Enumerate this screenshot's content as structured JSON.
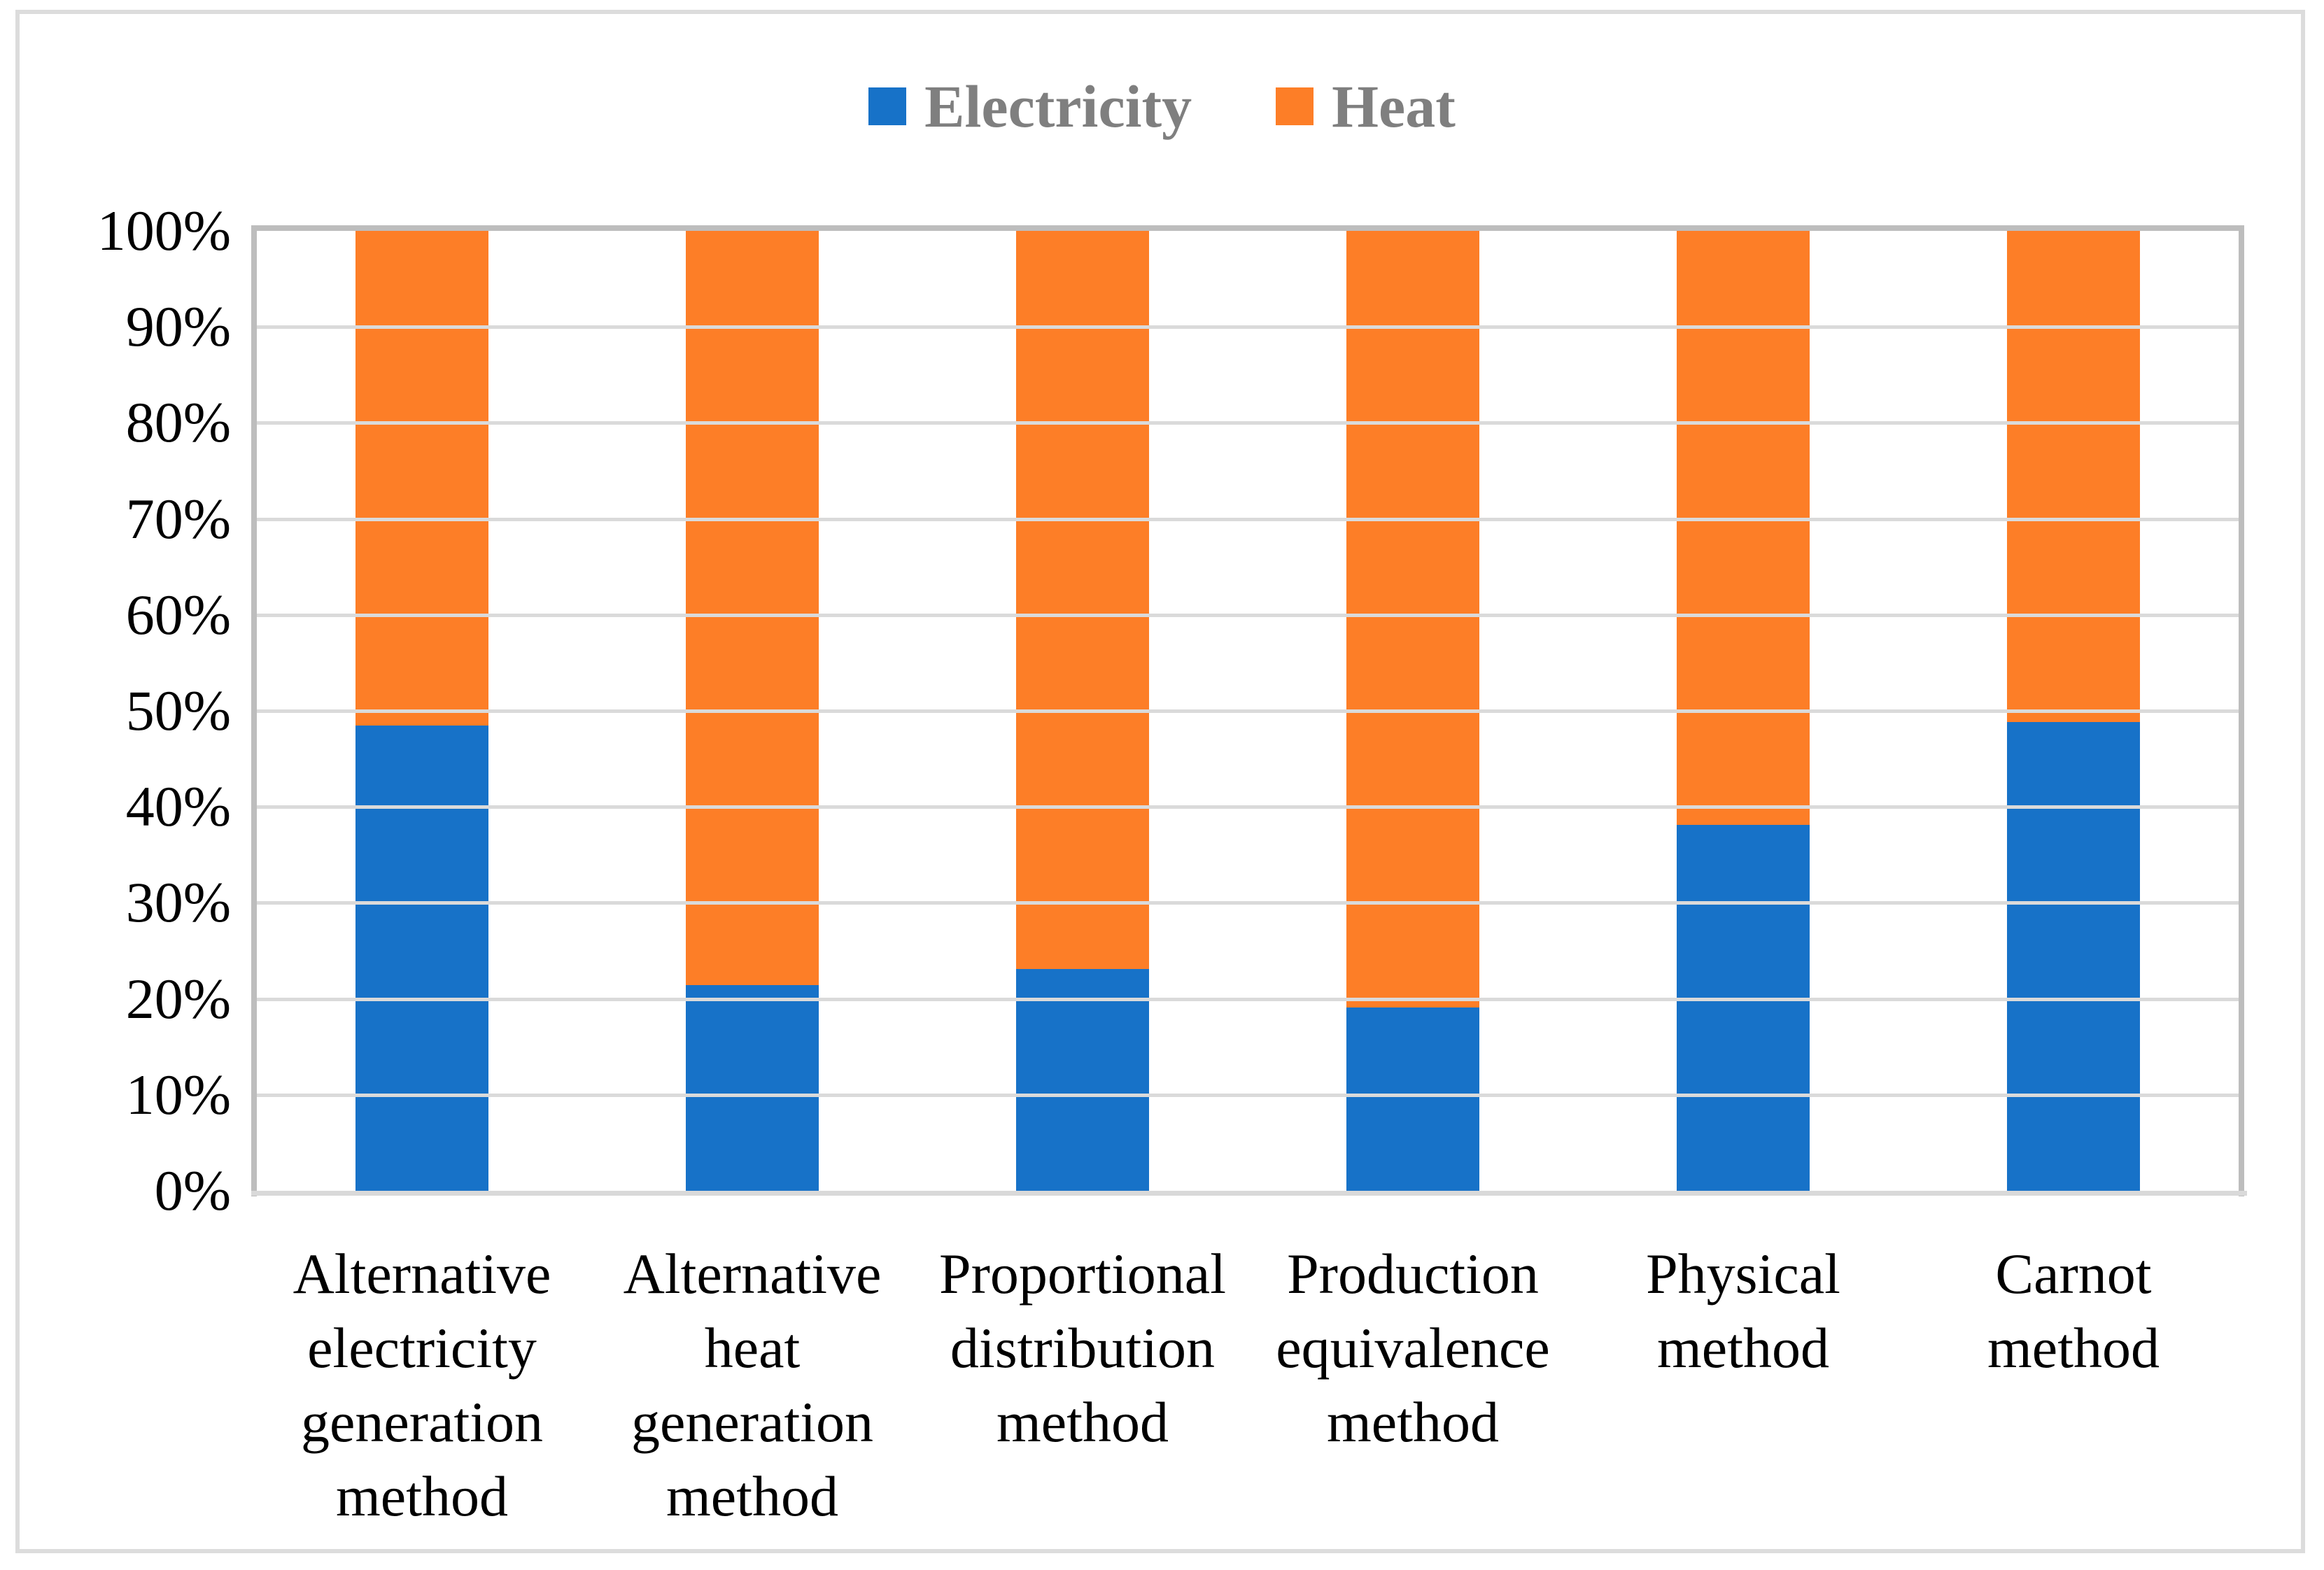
{
  "chart_data": {
    "type": "bar",
    "subtype": "stacked-100-percent",
    "title": "",
    "xlabel": "",
    "ylabel": "",
    "categories": [
      "Alternative\nelectricity\ngeneration\nmethod",
      "Alternative\nheat\ngeneration\nmethod",
      "Proportional\ndistribution\nmethod",
      "Production\nequivalence\nmethod",
      "Physical\nmethod",
      "Carnot\nmethod"
    ],
    "series": [
      {
        "name": "Electricity",
        "color": "#1772c8",
        "values": [
          48.5,
          21.4,
          23.1,
          19.1,
          38.1,
          48.8
        ]
      },
      {
        "name": "Heat",
        "color": "#fd7e27",
        "values": [
          51.5,
          78.6,
          76.9,
          80.9,
          61.9,
          51.2
        ]
      }
    ],
    "y_ticks": [
      "0%",
      "10%",
      "20%",
      "30%",
      "40%",
      "50%",
      "60%",
      "70%",
      "80%",
      "90%",
      "100%"
    ],
    "ylim": [
      0,
      100
    ],
    "y_step": 10,
    "grid": true,
    "legend_position": "top"
  },
  "legend": {
    "items": [
      {
        "label": "Electricity",
        "swatch_color": "#1772c8"
      },
      {
        "label": "Heat",
        "swatch_color": "#fd7e27"
      }
    ]
  },
  "colors": {
    "electricity": "#1772c8",
    "heat": "#fd7e27",
    "gridline": "#dadada",
    "plot_border": "#bdbdbd",
    "axis_line": "#d9d9d9",
    "legend_text": "#7f7f7f",
    "tick_text": "#000000",
    "frame_border": "#dcdcdc",
    "background": "#ffffff"
  }
}
